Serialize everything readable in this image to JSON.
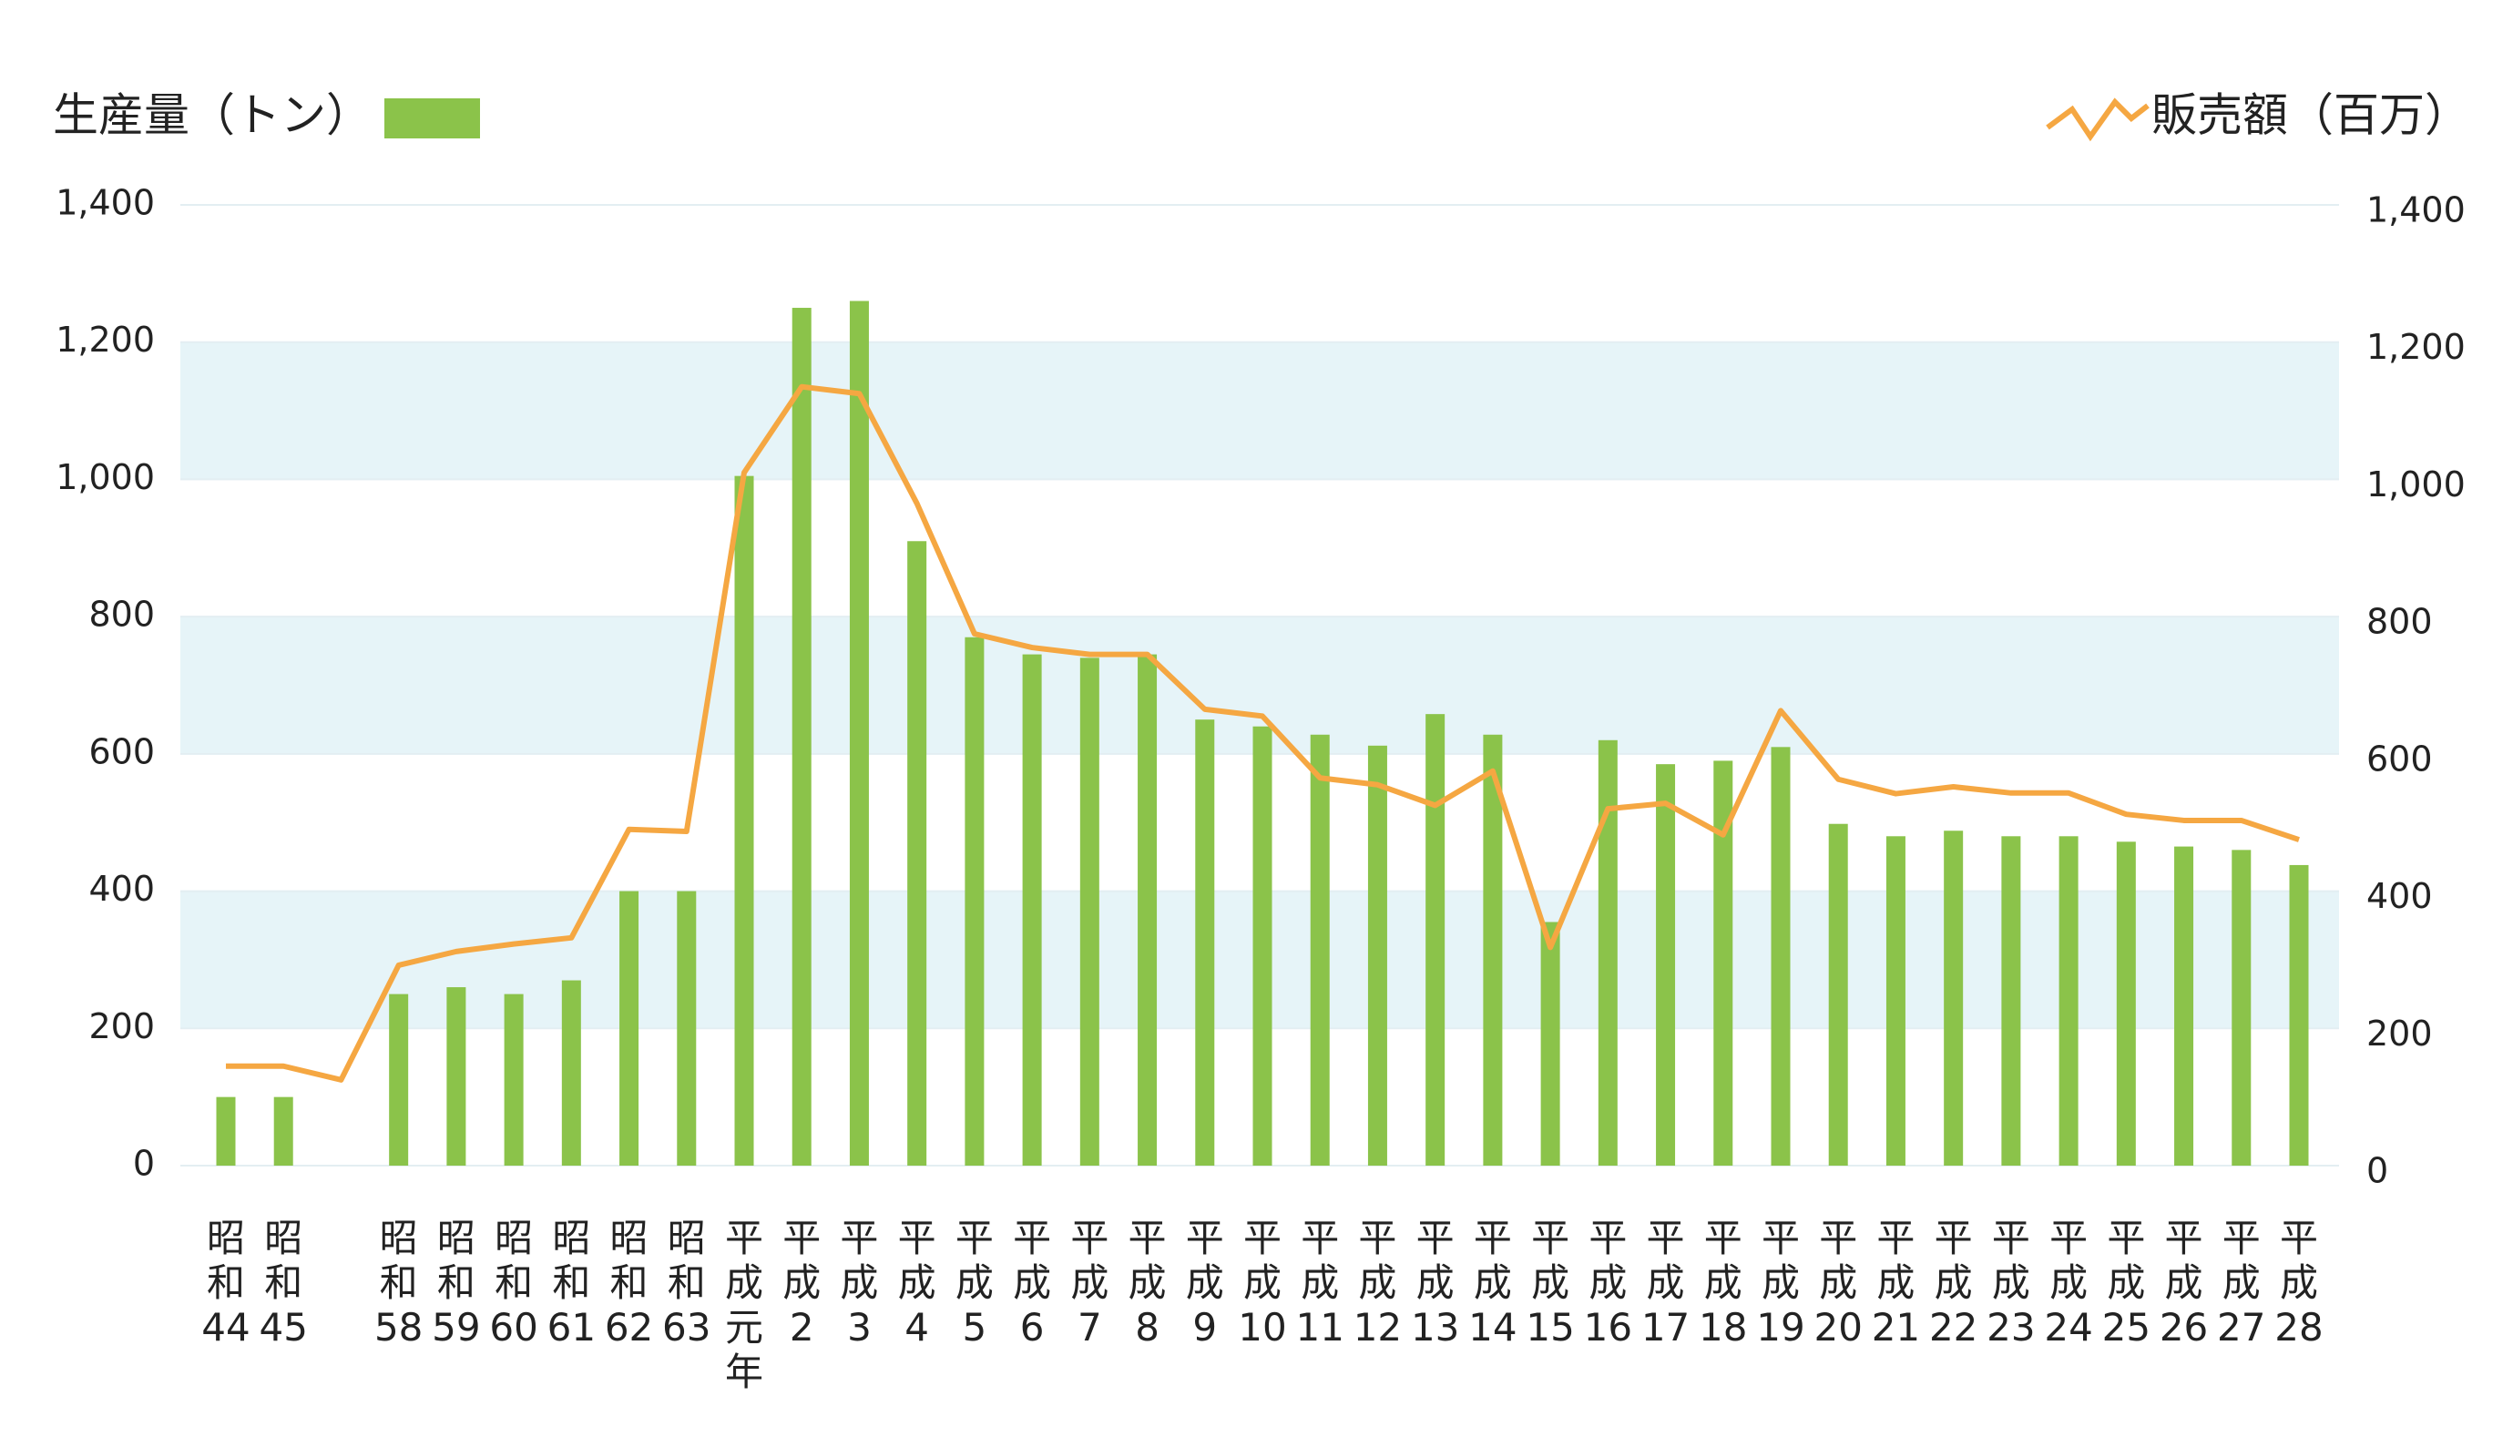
{
  "chart_data": {
    "type": "bar_line",
    "categories": [
      "昭和44",
      "昭和45",
      null,
      "昭和58",
      "昭和59",
      "昭和60",
      "昭和61",
      "昭和62",
      "昭和63",
      "平成元年",
      "平成2",
      "平成3",
      "平成4",
      "平成5",
      "平成6",
      "平成7",
      "平成8",
      "平成9",
      "平成10",
      "平成11",
      "平成12",
      "平成13",
      "平成14",
      "平成15",
      "平成16",
      "平成17",
      "平成18",
      "平成19",
      "平成20",
      "平成21",
      "平成22",
      "平成23",
      "平成24",
      "平成25",
      "平成26",
      "平成27",
      "平成28"
    ],
    "series": [
      {
        "name": "生産量（トン）",
        "type": "bar",
        "color": "#8bc34a",
        "values": [
          100,
          100,
          null,
          250,
          260,
          250,
          270,
          400,
          400,
          1005,
          1250,
          1260,
          910,
          770,
          745,
          740,
          745,
          650,
          640,
          628,
          612,
          658,
          628,
          355,
          620,
          585,
          590,
          610,
          498,
          480,
          488,
          480,
          480,
          472,
          465,
          460,
          438
        ]
      },
      {
        "name": "販売額（百万）",
        "type": "line",
        "axis": "y2",
        "color": "#f5a742",
        "values": [
          145,
          145,
          125,
          292,
          312,
          323,
          332,
          490,
          487,
          1010,
          1135,
          1125,
          965,
          775,
          755,
          745,
          745,
          665,
          655,
          565,
          555,
          525,
          575,
          318,
          520,
          528,
          482,
          663,
          563,
          542,
          552,
          543,
          543,
          512,
          503,
          503,
          475
        ]
      }
    ],
    "ylim": [
      0,
      1400
    ],
    "yticks": [
      0,
      200,
      400,
      600,
      800,
      {
        "value": 1000,
        "label": "1,000"
      },
      {
        "value": 1200,
        "label": "1,200"
      },
      {
        "value": 1400,
        "label": "1,400"
      }
    ],
    "y2lim": [
      0,
      1400
    ],
    "y2ticks": [
      0,
      200,
      400,
      600,
      800,
      {
        "value": 1000,
        "label": "1,000"
      },
      {
        "value": 1200,
        "label": "1,200"
      },
      {
        "value": 1400,
        "label": "1,400"
      }
    ],
    "band_color": "#e6f4f8"
  }
}
